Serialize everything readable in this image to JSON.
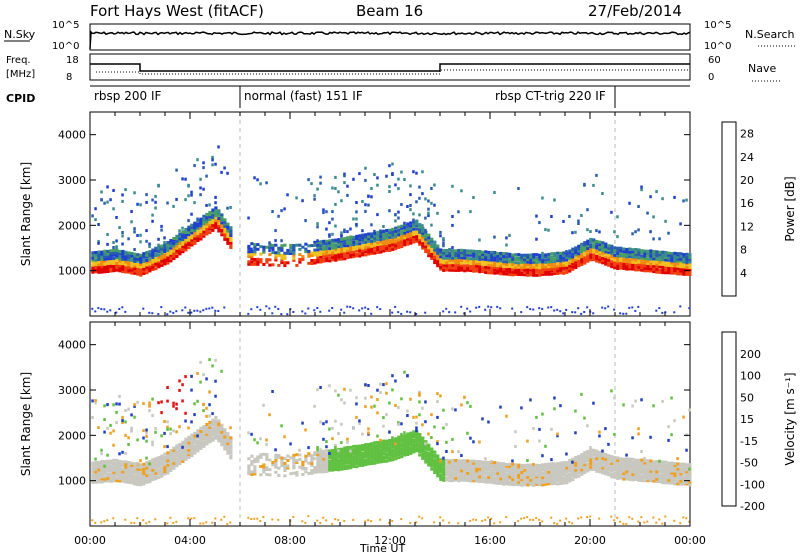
{
  "header": {
    "title": "Fort Hays West (fitACF)",
    "beam": "Beam 16",
    "date": "27/Feb/2014"
  },
  "top_panels": {
    "nsky_label": "N.Sky",
    "nsearch_label": "N.Search",
    "nsky_ticks": [
      "10^5",
      "10^0"
    ],
    "nsearch_ticks": [
      "10^5",
      "10^0"
    ],
    "freq_label_line1": "Freq.",
    "freq_label_line2": "[MHz]",
    "freq_ticks": [
      "18",
      "8"
    ],
    "nave_label": "Nave",
    "nave_ticks": [
      "60",
      "0"
    ],
    "cpid_label": "CPID",
    "cpid_modes": [
      {
        "label": "rbsp 200 IF",
        "start_h": 0,
        "end_h": 6
      },
      {
        "label": "normal (fast) 151 IF",
        "start_h": 6,
        "end_h": 21
      },
      {
        "label": "rbsp CT-trig 220 IF",
        "start_h": 21,
        "end_h": 24
      }
    ]
  },
  "chart_data": [
    {
      "type": "heatmap",
      "title": "",
      "xlabel": "Time UT",
      "ylabel": "Slant Range [km]",
      "xlim": [
        0,
        24
      ],
      "ylim": [
        0,
        4500
      ],
      "x_ticks": [
        "00:00",
        "04:00",
        "08:00",
        "12:00",
        "16:00",
        "20:00",
        "00:00"
      ],
      "y_ticks": [
        1000,
        2000,
        3000,
        4000
      ],
      "colorbar": {
        "label": "Power [dB]",
        "ticks": [
          4,
          8,
          12,
          16,
          20,
          24,
          28
        ],
        "range": [
          0,
          30
        ],
        "colors": [
          "#1f3fd0",
          "#2a5db0",
          "#3a8c8c",
          "#48a060",
          "#f0c020",
          "#f08a10",
          "#f04010",
          "#e00000"
        ]
      },
      "echo_band_km": [
        [
          0,
          1100
        ],
        [
          1,
          1150
        ],
        [
          2,
          1050
        ],
        [
          3,
          1300
        ],
        [
          4,
          1700
        ],
        [
          5,
          2100
        ],
        [
          6,
          1300
        ],
        [
          8,
          1250
        ],
        [
          10,
          1400
        ],
        [
          12,
          1600
        ],
        [
          13,
          1800
        ],
        [
          14,
          1150
        ],
        [
          15,
          1150
        ],
        [
          16,
          1100
        ],
        [
          17,
          1050
        ],
        [
          18,
          1050
        ],
        [
          19,
          1100
        ],
        [
          20,
          1400
        ],
        [
          21,
          1200
        ],
        [
          22,
          1150
        ],
        [
          24,
          1050
        ]
      ]
    },
    {
      "type": "heatmap",
      "title": "",
      "xlabel": "Time UT",
      "ylabel": "Slant Range [km]",
      "xlim": [
        0,
        24
      ],
      "ylim": [
        0,
        4500
      ],
      "x_ticks": [
        "00:00",
        "04:00",
        "08:00",
        "12:00",
        "16:00",
        "20:00",
        "00:00"
      ],
      "y_ticks": [
        1000,
        2000,
        3000,
        4000
      ],
      "colorbar": {
        "label": "Velocity [m s⁻¹]",
        "ticks": [
          200,
          100,
          50,
          15,
          -15,
          -50,
          -100,
          -200
        ],
        "colors": [
          "#2040c0",
          "#3050c8",
          "#208060",
          "#60c040",
          "#c8c8c0",
          "#f0a020",
          "#f06010",
          "#e01010"
        ]
      }
    }
  ],
  "x_axis_label": "Time UT"
}
